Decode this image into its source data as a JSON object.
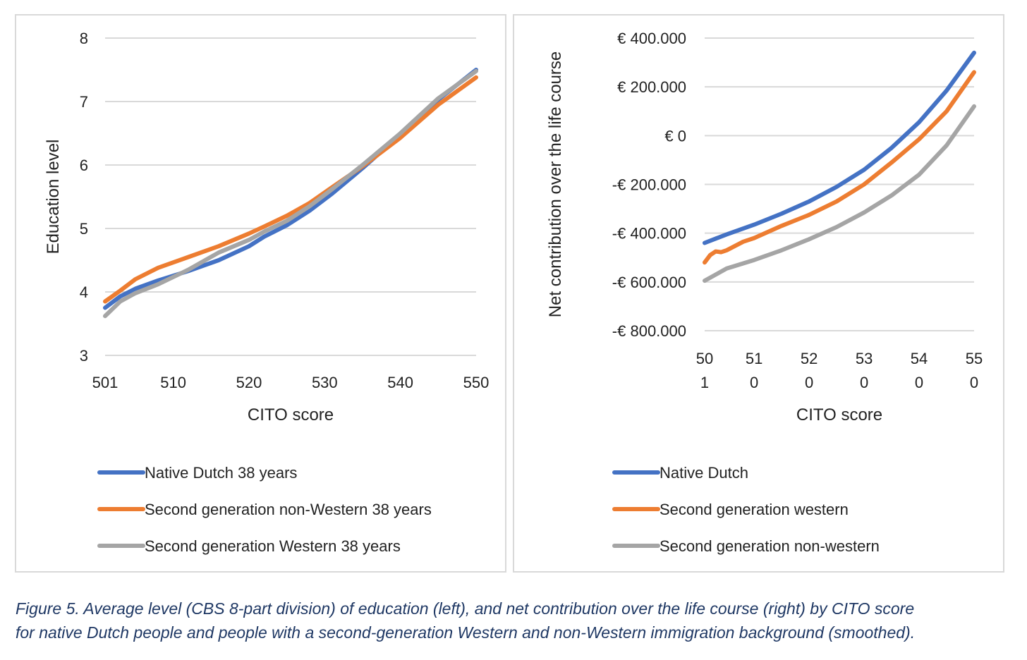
{
  "colors": {
    "native_dutch": "#4472c4",
    "second_gen_orange": "#ed7d31",
    "second_gen_gray": "#a5a5a5",
    "gridline": "#d9d9d9",
    "caption": "#1f3864"
  },
  "chart_data": [
    {
      "type": "line",
      "xlabel": "CITO score",
      "ylabel": "Education level",
      "ylim": [
        3,
        8
      ],
      "xlim": [
        501,
        550
      ],
      "grid": true,
      "legend_position": "bottom",
      "yticks": [
        {
          "value": 3,
          "label": "3"
        },
        {
          "value": 4,
          "label": "4"
        },
        {
          "value": 5,
          "label": "5"
        },
        {
          "value": 6,
          "label": "6"
        },
        {
          "value": 7,
          "label": "7"
        },
        {
          "value": 8,
          "label": "8"
        }
      ],
      "xticks": [
        {
          "value": 501,
          "label": "501"
        },
        {
          "value": 510,
          "label": "510"
        },
        {
          "value": 520,
          "label": "520"
        },
        {
          "value": 530,
          "label": "530"
        },
        {
          "value": 540,
          "label": "540"
        },
        {
          "value": 550,
          "label": "550"
        }
      ],
      "series": [
        {
          "name": "Native Dutch 38 years",
          "color": "#4472c4",
          "x": [
            501,
            503,
            505,
            508,
            512,
            516,
            520,
            522,
            525,
            528,
            531,
            535,
            540,
            545,
            550
          ],
          "y": [
            3.75,
            3.93,
            4.05,
            4.18,
            4.33,
            4.5,
            4.72,
            4.87,
            5.05,
            5.28,
            5.55,
            5.95,
            6.48,
            7.03,
            7.5
          ]
        },
        {
          "name": "Second generation non-Western 38 years",
          "color": "#ed7d31",
          "x": [
            501,
            503,
            505,
            508,
            512,
            516,
            520,
            522,
            525,
            528,
            531,
            535,
            540,
            545,
            550
          ],
          "y": [
            3.85,
            4.02,
            4.2,
            4.38,
            4.55,
            4.72,
            4.92,
            5.03,
            5.2,
            5.4,
            5.65,
            5.98,
            6.43,
            6.95,
            7.38
          ]
        },
        {
          "name": "Second generation Western 38 years",
          "color": "#a5a5a5",
          "x": [
            501,
            503,
            505,
            508,
            512,
            516,
            520,
            522,
            525,
            528,
            531,
            535,
            540,
            545,
            550
          ],
          "y": [
            3.62,
            3.85,
            3.98,
            4.12,
            4.35,
            4.62,
            4.82,
            4.95,
            5.12,
            5.35,
            5.62,
            6.0,
            6.5,
            7.05,
            7.48
          ]
        }
      ]
    },
    {
      "type": "line",
      "xlabel": "CITO score",
      "ylabel": "Net contribution over the life course",
      "ylim": [
        -800000,
        400000
      ],
      "xlim": [
        501,
        550
      ],
      "grid": true,
      "legend_position": "bottom",
      "yticks": [
        {
          "value": 400000,
          "label": "€ 400.000"
        },
        {
          "value": 200000,
          "label": "€ 200.000"
        },
        {
          "value": 0,
          "label": "€ 0"
        },
        {
          "value": -200000,
          "label": "-€ 200.000"
        },
        {
          "value": -400000,
          "label": "-€ 400.000"
        },
        {
          "value": -600000,
          "label": "-€ 600.000"
        },
        {
          "value": -800000,
          "label": "-€ 800.000"
        }
      ],
      "xticks": [
        {
          "value": 501,
          "line1": "50",
          "line2": "1"
        },
        {
          "value": 510,
          "line1": "51",
          "line2": "0"
        },
        {
          "value": 520,
          "line1": "52",
          "line2": "0"
        },
        {
          "value": 530,
          "line1": "53",
          "line2": "0"
        },
        {
          "value": 540,
          "line1": "54",
          "line2": "0"
        },
        {
          "value": 550,
          "line1": "55",
          "line2": "0"
        }
      ],
      "series": [
        {
          "name": "Native Dutch",
          "color": "#4472c4",
          "x": [
            501,
            505,
            510,
            515,
            520,
            525,
            530,
            535,
            540,
            545,
            550
          ],
          "y": [
            -440000,
            -405000,
            -365000,
            -320000,
            -270000,
            -210000,
            -140000,
            -50000,
            55000,
            185000,
            340000
          ]
        },
        {
          "name": "Second generation western",
          "color": "#ed7d31",
          "x": [
            501,
            502,
            503,
            504,
            505,
            508,
            510,
            515,
            520,
            525,
            530,
            535,
            540,
            545,
            550
          ],
          "y": [
            -520000,
            -490000,
            -475000,
            -478000,
            -470000,
            -435000,
            -420000,
            -370000,
            -325000,
            -270000,
            -200000,
            -110000,
            -15000,
            100000,
            260000
          ]
        },
        {
          "name": "Second generation non-western",
          "color": "#a5a5a5",
          "x": [
            501,
            505,
            510,
            515,
            520,
            525,
            530,
            535,
            540,
            545,
            550
          ],
          "y": [
            -595000,
            -545000,
            -510000,
            -470000,
            -425000,
            -375000,
            -315000,
            -245000,
            -160000,
            -40000,
            120000
          ]
        }
      ]
    }
  ],
  "caption": {
    "line1": "Figure 5. Average level (CBS 8-part division) of education (left), and net contribution over the life course (right) by CITO score",
    "line2": "for native Dutch people and people with a second-generation Western and non-Western immigration background (smoothed)."
  }
}
